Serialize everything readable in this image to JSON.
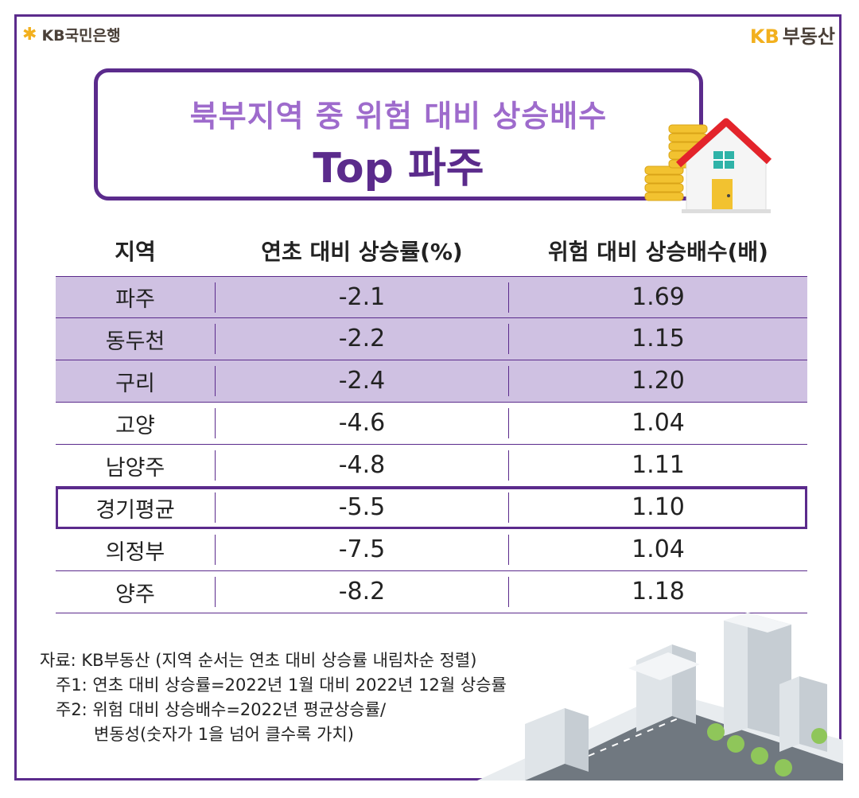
{
  "brand": {
    "bank_name": "KB국민은행",
    "realestate_kb": "KB",
    "realestate_name": "부동산"
  },
  "title": {
    "line1": "북부지역 중 위험 대비 상승배수",
    "line2": "Top 파주"
  },
  "table": {
    "headers": [
      "지역",
      "연초 대비 상승률(%)",
      "위험 대비 상승배수(배)"
    ],
    "rows": [
      {
        "region": "파주",
        "change": "-2.1",
        "ratio": "1.69"
      },
      {
        "region": "동두천",
        "change": "-2.2",
        "ratio": "1.15"
      },
      {
        "region": "구리",
        "change": "-2.4",
        "ratio": "1.20"
      },
      {
        "region": "고양",
        "change": "-4.6",
        "ratio": "1.04"
      },
      {
        "region": "남양주",
        "change": "-4.8",
        "ratio": "1.11"
      },
      {
        "region": "경기평균",
        "change": "-5.5",
        "ratio": "1.10"
      },
      {
        "region": "의정부",
        "change": "-7.5",
        "ratio": "1.04"
      },
      {
        "region": "양주",
        "change": "-8.2",
        "ratio": "1.18"
      }
    ]
  },
  "notes": {
    "source": "자료: KB부동산 (지역 순서는 연초 대비 상승률 내림차순 정렬)",
    "note1": "주1: 연초 대비 상승률=2022년 1월 대비 2022년 12월 상승률",
    "note2": "주2: 위험 대비 상승배수=2022년 평균상승률/",
    "note3": "변동성(숫자가 1을 넘어 클수록 가치)"
  },
  "colors": {
    "accent": "#5b2b8c",
    "accent_light": "#9e6bcc",
    "highlight_row": "#cfc1e2",
    "kb_yellow": "#f2b01e"
  },
  "icons": [
    "kb-star-logo-icon",
    "house-with-coins-icon",
    "city-buildings-illustration"
  ]
}
